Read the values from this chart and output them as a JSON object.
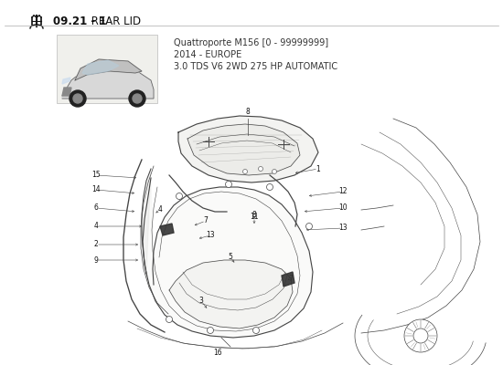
{
  "title_bold": "09.21 - 1",
  "title_rest": " REAR LID",
  "subtitle_line1": "Quattroporte M156 [0 - 99999999]",
  "subtitle_line2": "2014 - EUROPE",
  "subtitle_line3": "3.0 TDS V6 2WD 275 HP AUTOMATIC",
  "bg_color": "#ffffff",
  "title_color": "#1a1a1a",
  "text_color": "#444444",
  "line_color": "#444444",
  "lw_main": 0.8,
  "lw_thin": 0.5,
  "lw_thick": 1.4
}
